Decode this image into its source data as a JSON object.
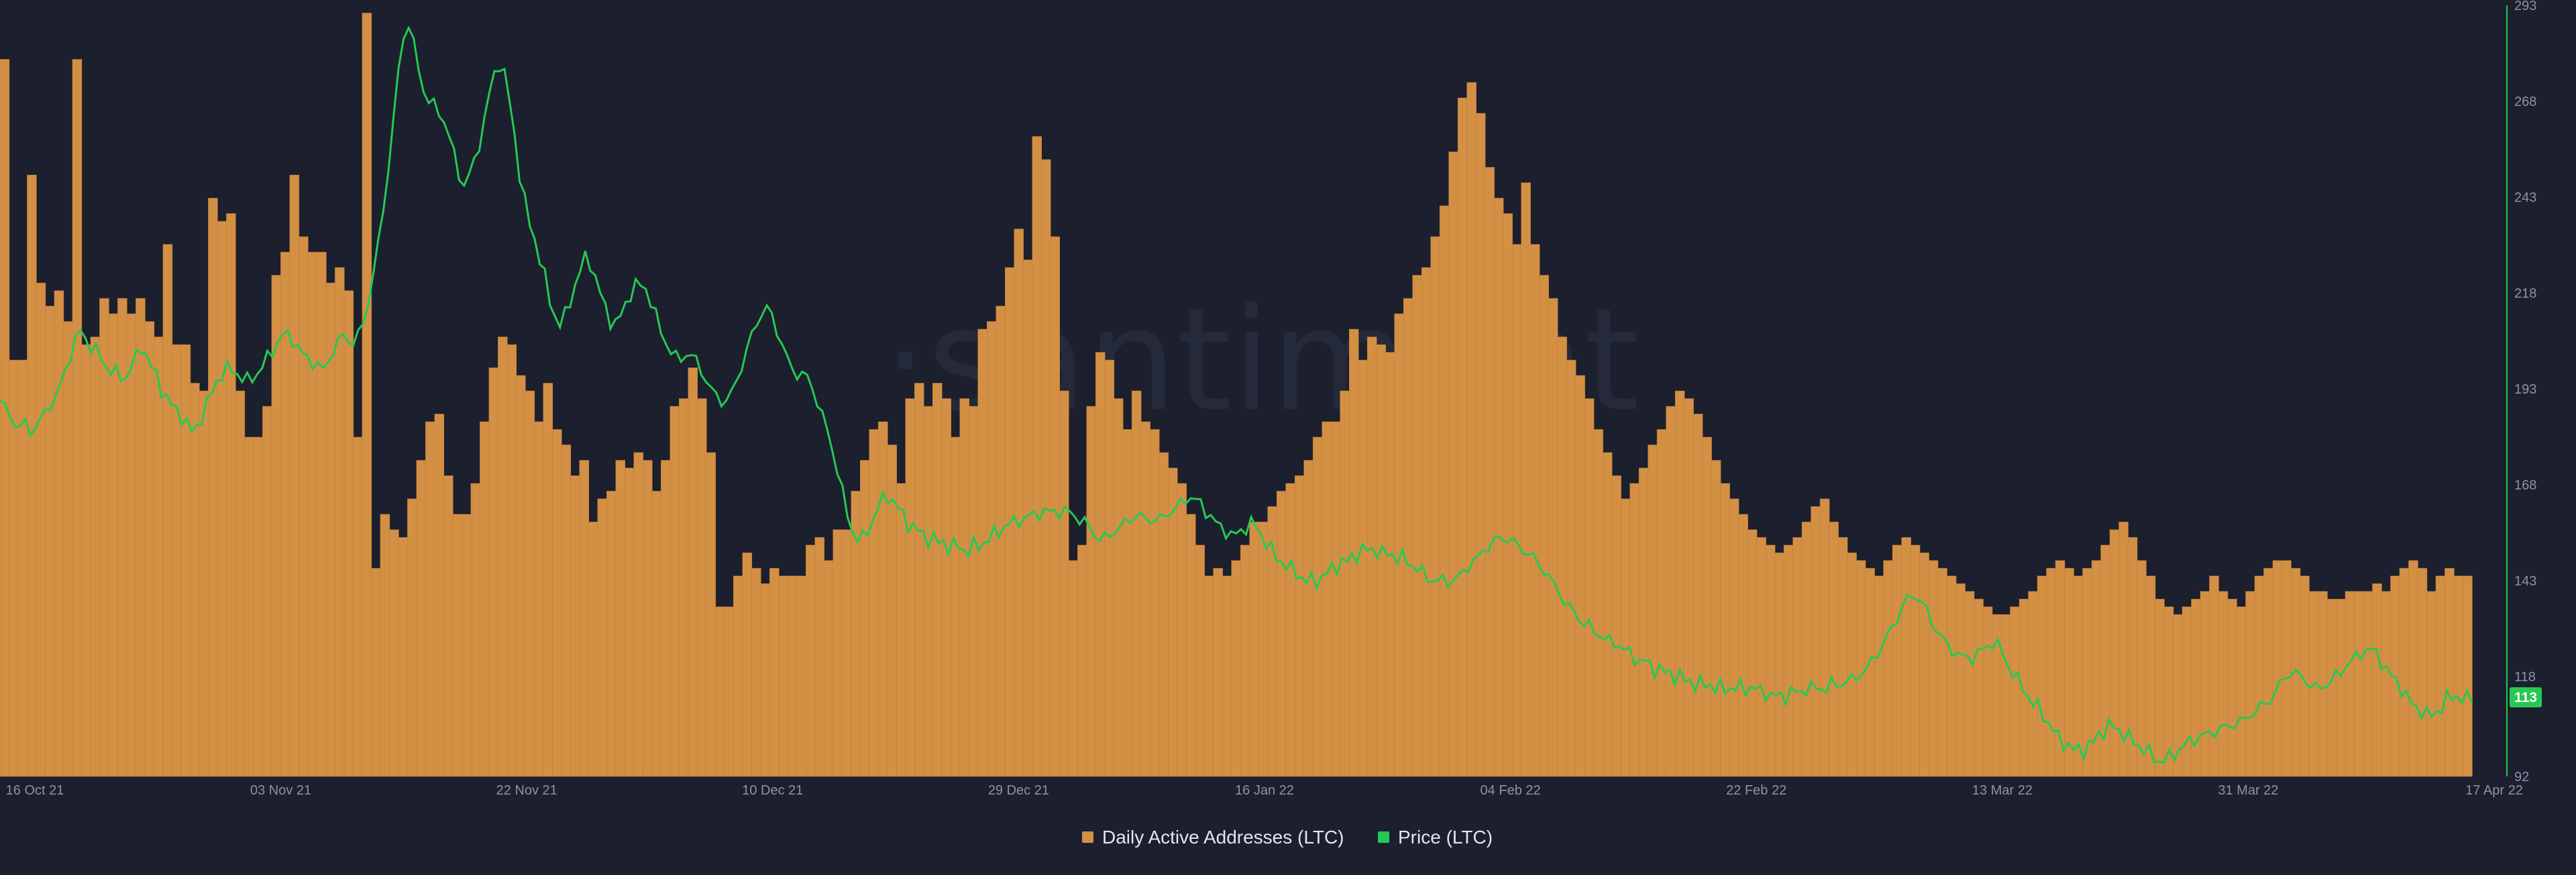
{
  "watermark": "·santiment",
  "colors": {
    "background": "#1b1f2e",
    "bar": "#d39045",
    "bar_edge": "#c07b33",
    "price_line": "#26c953",
    "axis_text": "#8d93a8",
    "price_tag_text": "#ffffff"
  },
  "legend": [
    {
      "label": "Daily Active Addresses (LTC)",
      "color": "#d39045",
      "icon": "square-swatch"
    },
    {
      "label": "Price (LTC)",
      "color": "#26c953",
      "icon": "square-swatch"
    }
  ],
  "chart_data": {
    "type": "bar",
    "x_ticks": [
      "16 Oct 21",
      "03 Nov 21",
      "22 Nov 21",
      "10 Dec 21",
      "29 Dec 21",
      "16 Jan 22",
      "04 Feb 22",
      "22 Feb 22",
      "13 Mar 22",
      "31 Mar 22",
      "17 Apr 22"
    ],
    "x_range": [
      "2021-10-16",
      "2022-04-17"
    ],
    "price_axis": {
      "ticks": [
        92,
        118,
        143,
        168,
        193,
        218,
        243,
        268,
        293
      ],
      "ylim": [
        92,
        293
      ],
      "side": "right"
    },
    "current_price_label": "113",
    "grid": false,
    "legend_position": "bottom-center",
    "series": [
      {
        "name": "Daily Active Addresses (LTC)",
        "type": "bar",
        "values": [
          0.93,
          0.54,
          0.54,
          0.78,
          0.64,
          0.61,
          0.63,
          0.59,
          0.93,
          0.56,
          0.57,
          0.62,
          0.6,
          0.62,
          0.6,
          0.62,
          0.59,
          0.57,
          0.69,
          0.56,
          0.56,
          0.51,
          0.5,
          0.75,
          0.72,
          0.73,
          0.5,
          0.44,
          0.44,
          0.48,
          0.65,
          0.68,
          0.78,
          0.7,
          0.68,
          0.68,
          0.64,
          0.66,
          0.63,
          0.44,
          0.99,
          0.27,
          0.34,
          0.32,
          0.31,
          0.36,
          0.41,
          0.46,
          0.47,
          0.39,
          0.34,
          0.34,
          0.38,
          0.46,
          0.53,
          0.57,
          0.56,
          0.52,
          0.5,
          0.46,
          0.51,
          0.45,
          0.43,
          0.39,
          0.41,
          0.33,
          0.36,
          0.37,
          0.41,
          0.4,
          0.42,
          0.41,
          0.37,
          0.41,
          0.48,
          0.49,
          0.53,
          0.49,
          0.42,
          0.22,
          0.22,
          0.26,
          0.29,
          0.27,
          0.25,
          0.27,
          0.26,
          0.26,
          0.26,
          0.3,
          0.31,
          0.28,
          0.32,
          0.32,
          0.37,
          0.41,
          0.45,
          0.46,
          0.43,
          0.38,
          0.49,
          0.51,
          0.48,
          0.51,
          0.49,
          0.44,
          0.49,
          0.48,
          0.58,
          0.59,
          0.61,
          0.66,
          0.71,
          0.67,
          0.83,
          0.8,
          0.7,
          0.5,
          0.28,
          0.3,
          0.48,
          0.55,
          0.54,
          0.49,
          0.45,
          0.5,
          0.46,
          0.45,
          0.42,
          0.4,
          0.38,
          0.34,
          0.3,
          0.26,
          0.27,
          0.26,
          0.28,
          0.3,
          0.33,
          0.33,
          0.35,
          0.37,
          0.38,
          0.39,
          0.41,
          0.44,
          0.46,
          0.46,
          0.5,
          0.58,
          0.54,
          0.57,
          0.56,
          0.55,
          0.6,
          0.62,
          0.65,
          0.66,
          0.7,
          0.74,
          0.81,
          0.88,
          0.9,
          0.86,
          0.79,
          0.75,
          0.73,
          0.69,
          0.77,
          0.69,
          0.65,
          0.62,
          0.57,
          0.54,
          0.52,
          0.49,
          0.45,
          0.42,
          0.39,
          0.36,
          0.38,
          0.4,
          0.43,
          0.45,
          0.48,
          0.5,
          0.49,
          0.47,
          0.44,
          0.41,
          0.38,
          0.36,
          0.34,
          0.32,
          0.31,
          0.3,
          0.29,
          0.3,
          0.31,
          0.33,
          0.35,
          0.36,
          0.33,
          0.31,
          0.29,
          0.28,
          0.27,
          0.26,
          0.28,
          0.3,
          0.31,
          0.3,
          0.29,
          0.28,
          0.27,
          0.26,
          0.25,
          0.24,
          0.23,
          0.22,
          0.21,
          0.21,
          0.22,
          0.23,
          0.24,
          0.26,
          0.27,
          0.28,
          0.27,
          0.26,
          0.27,
          0.28,
          0.3,
          0.32,
          0.33,
          0.31,
          0.28,
          0.26,
          0.23,
          0.22,
          0.21,
          0.22,
          0.23,
          0.24,
          0.26,
          0.24,
          0.23,
          0.22,
          0.24,
          0.26,
          0.27,
          0.28,
          0.28,
          0.27,
          0.26,
          0.24,
          0.24,
          0.23,
          0.23,
          0.24,
          0.24,
          0.24,
          0.25,
          0.24,
          0.26,
          0.27,
          0.28,
          0.27,
          0.24,
          0.26,
          0.27,
          0.26,
          0.26
        ]
      },
      {
        "name": "Price (LTC)",
        "type": "line",
        "values": [
          190,
          188,
          186,
          184,
          183,
          184,
          182,
          183,
          185,
          187,
          189,
          191,
          194,
          198,
          202,
          206,
          208,
          206,
          204,
          203,
          201,
          199,
          198,
          197,
          196,
          196,
          199,
          201,
          204,
          202,
          199,
          196,
          193,
          191,
          189,
          187,
          186,
          184,
          182,
          183,
          186,
          189,
          192,
          195,
          197,
          198,
          198,
          197,
          196,
          195,
          196,
          197,
          199,
          201,
          203,
          205,
          207,
          207,
          206,
          204,
          202,
          201,
          200,
          199,
          198,
          200,
          203,
          205,
          207,
          206,
          205,
          207,
          210,
          216,
          223,
          231,
          240,
          251,
          263,
          276,
          285,
          288,
          283,
          276,
          271,
          268,
          267,
          265,
          263,
          259,
          254,
          249,
          246,
          249,
          252,
          257,
          263,
          270,
          275,
          278,
          275,
          268,
          259,
          249,
          242,
          236,
          232,
          227,
          222,
          216,
          212,
          210,
          212,
          216,
          220,
          224,
          227,
          226,
          222,
          218,
          214,
          211,
          210,
          212,
          215,
          218,
          220,
          220,
          219,
          216,
          212,
          208,
          205,
          203,
          201,
          201,
          202,
          202,
          200,
          198,
          195,
          193,
          191,
          190,
          190,
          192,
          195,
          199,
          203,
          207,
          210,
          213,
          214,
          212,
          208,
          205,
          201,
          198,
          197,
          197,
          196,
          193,
          190,
          186,
          182,
          177,
          172,
          166,
          160,
          156,
          154,
          154,
          156,
          159,
          162,
          164,
          165,
          164,
          162,
          160,
          158,
          157,
          156,
          155,
          154,
          154,
          153,
          153,
          152,
          152,
          152,
          151,
          151,
          152,
          152,
          153,
          154,
          155,
          156,
          157,
          158,
          158,
          159,
          159,
          160,
          160,
          161,
          161,
          161,
          161,
          161,
          161,
          161,
          160,
          159,
          158,
          157,
          155,
          154,
          154,
          155,
          156,
          157,
          158,
          159,
          160,
          160,
          159,
          159,
          159,
          159,
          160,
          161,
          162,
          163,
          164,
          165,
          164,
          163,
          161,
          160,
          158,
          157,
          156,
          155,
          155,
          156,
          157,
          158,
          157,
          155,
          153,
          151,
          149,
          148,
          147,
          146,
          145,
          144,
          143,
          143,
          143,
          144,
          145,
          146,
          147,
          148,
          148,
          149,
          150,
          151,
          151,
          151,
          151,
          150,
          150,
          150,
          149,
          149,
          148,
          147,
          146,
          145,
          144,
          143,
          143,
          143,
          143,
          143,
          144,
          145,
          147,
          148,
          149,
          151,
          152,
          153,
          154,
          154,
          154,
          153,
          152,
          151,
          150,
          149,
          147,
          146,
          144,
          142,
          140,
          138,
          136,
          135,
          133,
          132,
          131,
          130,
          129,
          128,
          127,
          127,
          126,
          125,
          124,
          123,
          122,
          122,
          121,
          120,
          120,
          119,
          119,
          118,
          118,
          117,
          117,
          116,
          116,
          116,
          116,
          115,
          115,
          115,
          115,
          115,
          115,
          115,
          115,
          115,
          114,
          114,
          113,
          113,
          113,
          113,
          114,
          114,
          114,
          115,
          115,
          115,
          115,
          115,
          116,
          116,
          116,
          117,
          117,
          118,
          119,
          120,
          122,
          124,
          126,
          128,
          131,
          133,
          136,
          138,
          139,
          139,
          137,
          135,
          132,
          130,
          128,
          126,
          125,
          124,
          123,
          123,
          123,
          124,
          125,
          126,
          127,
          126,
          124,
          121,
          119,
          117,
          115,
          113,
          111,
          110,
          108,
          106,
          104,
          102,
          101,
          100,
          99,
          99,
          99,
          100,
          101,
          103,
          104,
          105,
          105,
          104,
          103,
          102,
          101,
          100,
          99,
          98,
          97,
          96,
          96,
          97,
          98,
          99,
          100,
          101,
          102,
          102,
          103,
          103,
          104,
          104,
          105,
          105,
          106,
          106,
          107,
          108,
          109,
          110,
          111,
          112,
          114,
          116,
          118,
          119,
          119,
          118,
          117,
          116,
          115,
          115,
          116,
          117,
          118,
          119,
          121,
          122,
          123,
          124,
          125,
          125,
          124,
          122,
          120,
          118,
          117,
          115,
          113,
          111,
          110,
          109,
          108,
          108,
          109,
          110,
          112,
          113,
          113,
          112,
          112,
          113
        ]
      }
    ]
  }
}
